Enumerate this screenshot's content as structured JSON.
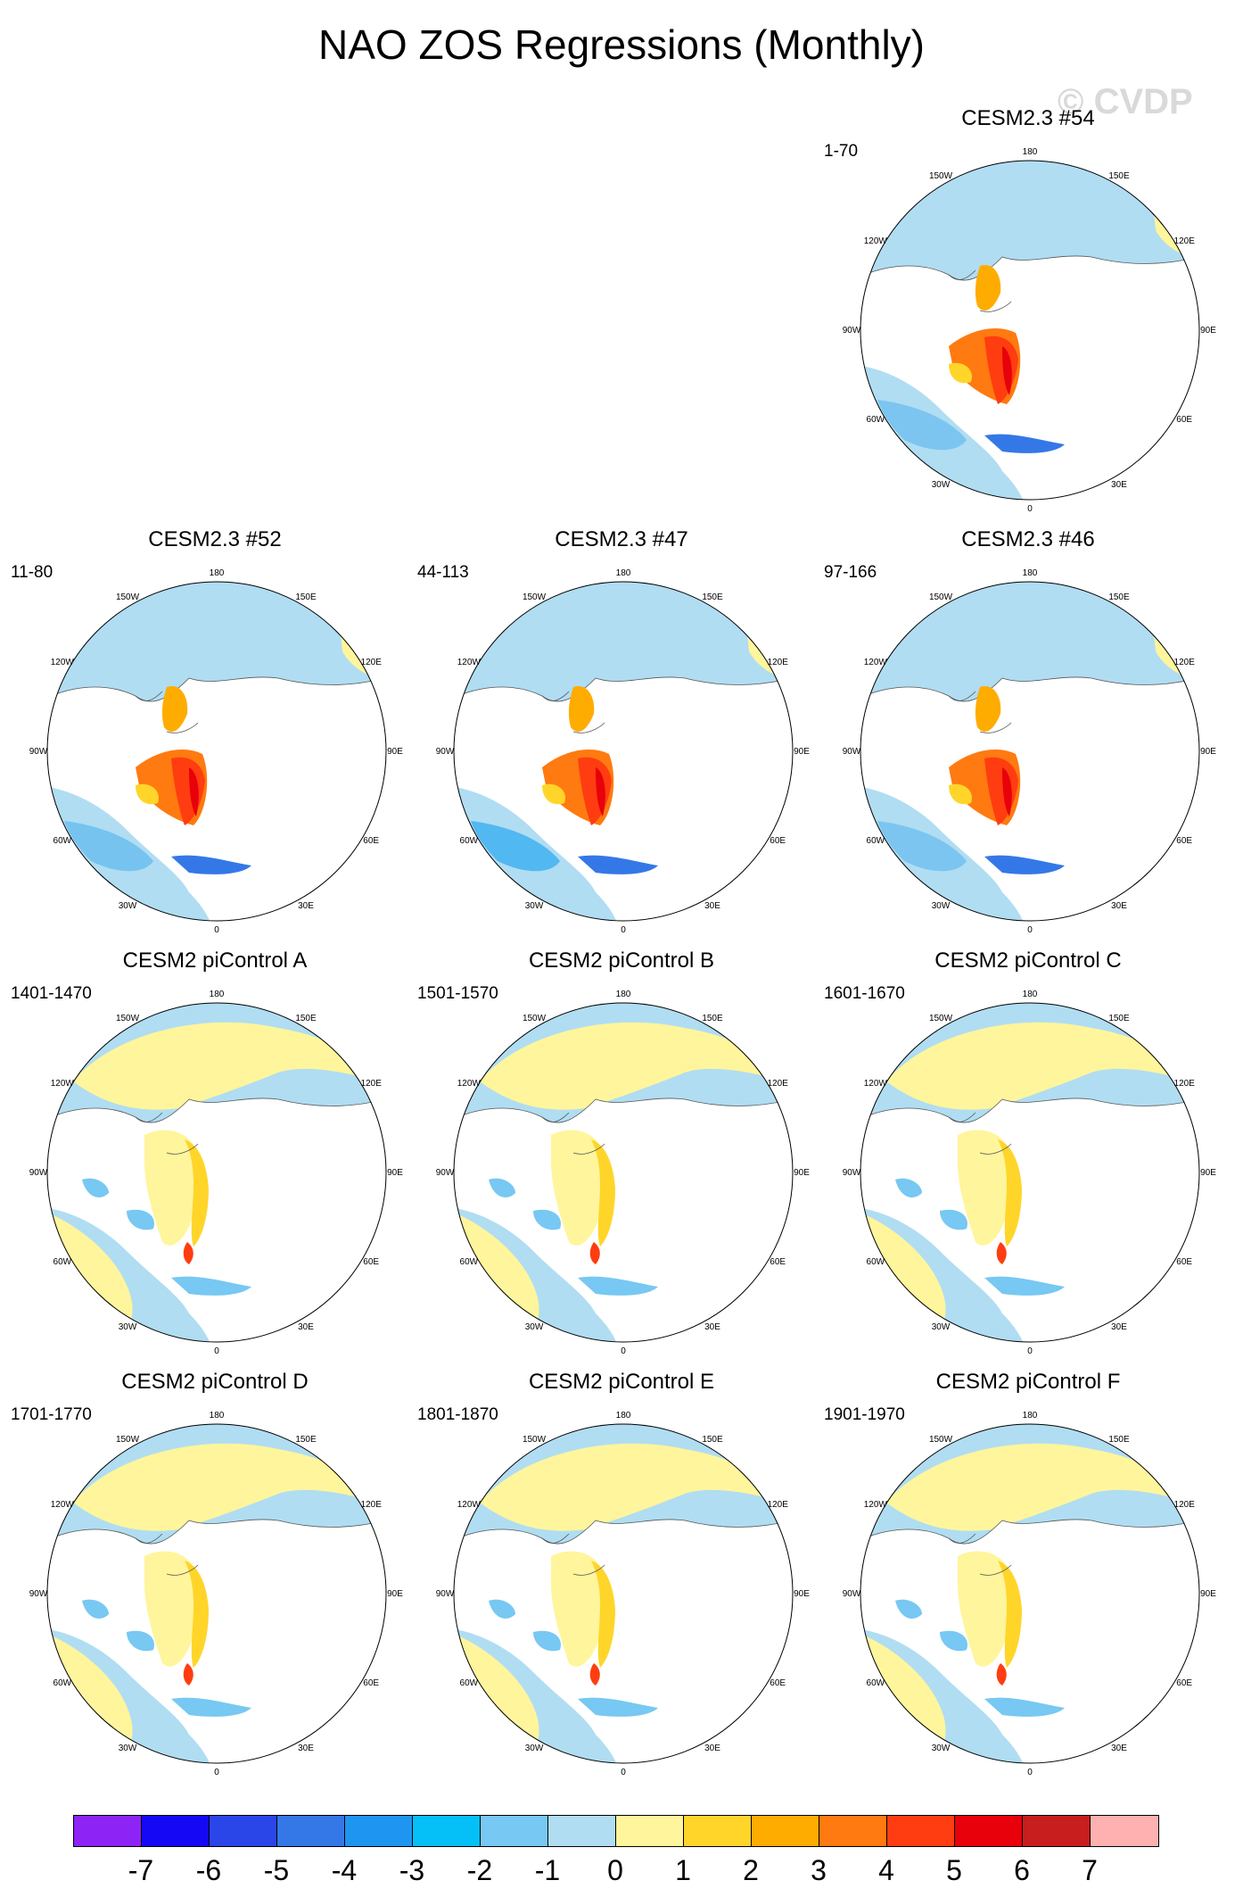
{
  "title": "NAO ZOS Regressions (Monthly)",
  "watermark": "© CVDP",
  "lon_labels": [
    "180",
    "150E",
    "120E",
    "90E",
    "60E",
    "30E",
    "0",
    "30W",
    "60W",
    "90W",
    "120W",
    "150W"
  ],
  "panels": [
    {
      "title": "CESM2.3 #54",
      "years": "1-70",
      "style": "cesm23",
      "blue": "#7cc5f0",
      "nh": "#b0ddf2"
    },
    {
      "title": "CESM2.3 #52",
      "years": "11-80",
      "style": "cesm23",
      "blue": "#77c3f0",
      "nh": "#b0ddf2"
    },
    {
      "title": "CESM2.3 #47",
      "years": "44-113",
      "style": "cesm23",
      "blue": "#52b8f2",
      "nh": "#b0ddf2"
    },
    {
      "title": "CESM2.3 #46",
      "years": "97-166",
      "style": "cesm23",
      "blue": "#7cc5f0",
      "nh": "#b0ddf2"
    },
    {
      "title": "CESM2 piControl A",
      "years": "1401-1470",
      "style": "pi"
    },
    {
      "title": "CESM2 piControl B",
      "years": "1501-1570",
      "style": "pi"
    },
    {
      "title": "CESM2 piControl C",
      "years": "1601-1670",
      "style": "pi"
    },
    {
      "title": "CESM2 piControl D",
      "years": "1701-1770",
      "style": "pi"
    },
    {
      "title": "CESM2 piControl E",
      "years": "1801-1870",
      "style": "pi"
    },
    {
      "title": "CESM2 piControl F",
      "years": "1901-1970",
      "style": "pi"
    }
  ],
  "colorbar": {
    "colors": [
      "#8d24f5",
      "#1508f5",
      "#2b46e8",
      "#3478e8",
      "#1f95f2",
      "#05c0f7",
      "#77c8f2",
      "#b0ddf2",
      "#fff59c",
      "#ffd52a",
      "#ffac00",
      "#ff7a10",
      "#ff3d10",
      "#e8000a",
      "#c81e1e",
      "#ffb0b0"
    ],
    "labels": [
      "-7",
      "-6",
      "-5",
      "-4",
      "-3",
      "-2",
      "-1",
      "0",
      "1",
      "2",
      "3",
      "4",
      "5",
      "6",
      "7"
    ]
  }
}
